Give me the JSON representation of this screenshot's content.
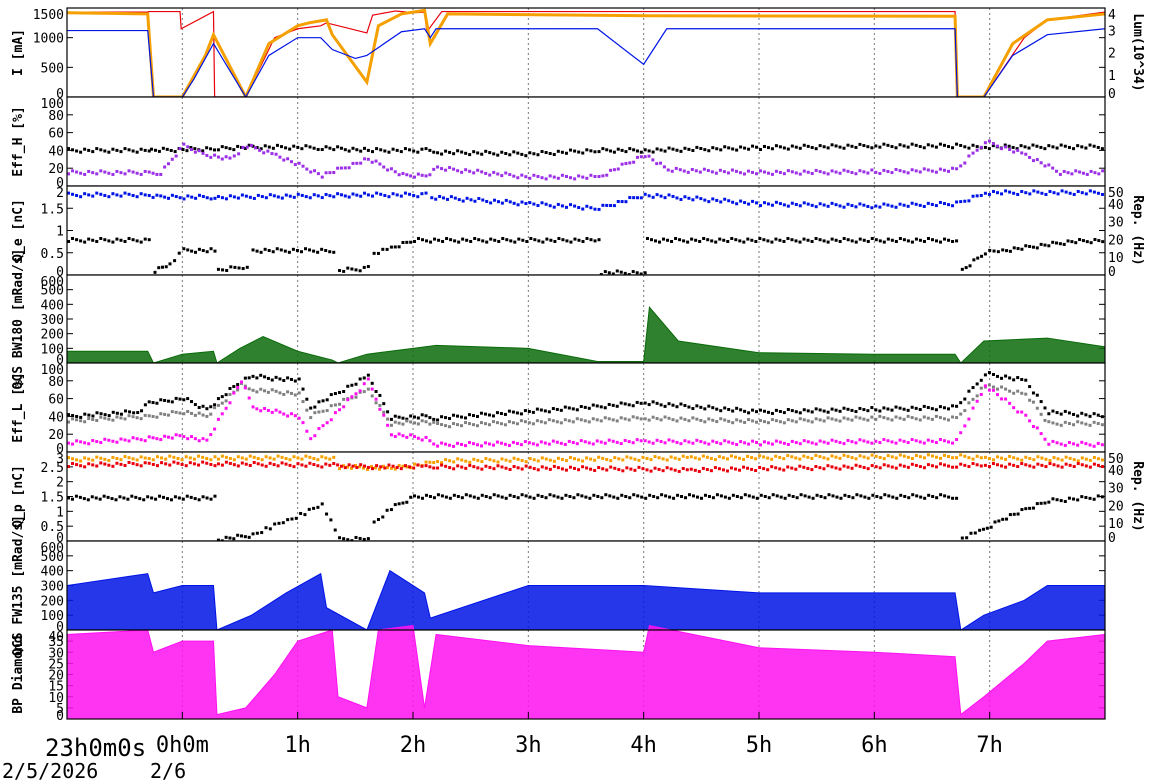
{
  "time_axis": {
    "tick_labels": [
      "0h0m",
      "1h",
      "2h",
      "3h",
      "4h",
      "5h",
      "6h",
      "7h"
    ],
    "start_label": "23h0m0s",
    "date_labels": [
      "2/5/2026",
      "2/6"
    ],
    "range_hours": [
      -1,
      8
    ]
  },
  "colors": {
    "red": "#e8000b",
    "orange": "#f5a000",
    "blue": "#0014e6",
    "black": "#000000",
    "purple": "#9b30e6",
    "green": "#0a6b0a",
    "gray": "#808080",
    "magenta": "#ff10f0"
  },
  "chart_data": [
    {
      "type": "line",
      "ylabel": "I [mA]",
      "ylim": [
        0,
        1500
      ],
      "yticks": [
        "0",
        "500",
        "1000",
        "1500"
      ],
      "right_axis": {
        "label": "Lum(10^34)",
        "ylim": [
          0,
          4
        ],
        "ticks": [
          "0",
          "1",
          "2",
          "3",
          "4"
        ]
      },
      "series": [
        {
          "color": "red",
          "x": [
            -1,
            -0.3,
            -0.29,
            -0.02,
            -0.01,
            0.27,
            0.28,
            0.55,
            0.8,
            1.0,
            1.2,
            1.25,
            1.6,
            1.65,
            1.85,
            2.0,
            2.1,
            2.12,
            2.25,
            6.7,
            6.72,
            6.95,
            7.3,
            7.5,
            8
          ],
          "y": [
            1430,
            1430,
            1440,
            1440,
            1150,
            1440,
            0,
            0,
            1000,
            1150,
            1200,
            1250,
            1080,
            1380,
            1450,
            1420,
            1430,
            1100,
            1440,
            1440,
            0,
            0,
            1000,
            1300,
            1430
          ]
        },
        {
          "color": "orange",
          "x": [
            -1,
            -0.3,
            -0.25,
            0,
            0.2,
            0.27,
            0.55,
            0.75,
            1.0,
            1.1,
            1.25,
            1.3,
            1.6,
            1.7,
            1.9,
            2.1,
            2.15,
            2.3,
            4.0,
            6.7,
            6.72,
            6.95,
            7.2,
            7.5,
            8
          ],
          "y": [
            1420,
            1400,
            0,
            0,
            700,
            1050,
            0,
            900,
            1200,
            1250,
            1300,
            1050,
            250,
            1200,
            1400,
            1460,
            900,
            1400,
            1370,
            1360,
            0,
            0,
            900,
            1300,
            1400
          ]
        },
        {
          "color": "blue",
          "x": [
            -1,
            -0.3,
            -0.25,
            0,
            0.1,
            0.27,
            0.55,
            0.75,
            1.0,
            1.2,
            1.3,
            1.5,
            1.6,
            1.9,
            2.1,
            2.15,
            2.2,
            3.6,
            4.0,
            4.2,
            6.7,
            6.72,
            6.95,
            7.2,
            7.5,
            8
          ],
          "y": [
            1120,
            1120,
            0,
            0,
            300,
            900,
            0,
            700,
            1000,
            1000,
            800,
            650,
            700,
            1100,
            1150,
            1000,
            1150,
            1150,
            550,
            1150,
            1150,
            0,
            0,
            700,
            1050,
            1150
          ]
        }
      ]
    },
    {
      "type": "scatter",
      "ylabel": "Eff_H [%]",
      "ylim": [
        0,
        100
      ],
      "yticks": [
        "0",
        "20",
        "40",
        "60",
        "80",
        "100"
      ],
      "series": [
        {
          "color": "black",
          "x": [
            -1,
            -0.3,
            -0.28,
            0.3,
            0.6,
            1.2,
            1.6,
            2.1,
            2.2,
            3.0,
            3.6,
            4.0,
            5.0,
            6.0,
            6.7,
            6.95,
            7.5,
            8
          ],
          "y": [
            40,
            40,
            40,
            42,
            44,
            43,
            40,
            40,
            38,
            36,
            40,
            40,
            43,
            45,
            45,
            44,
            44,
            44
          ]
        },
        {
          "color": "purple",
          "x": [
            -1,
            -0.3,
            -0.2,
            -0.1,
            0.0,
            0.2,
            0.4,
            0.55,
            0.8,
            1.2,
            1.6,
            1.9,
            2.1,
            2.2,
            3.0,
            3.6,
            4.0,
            4.2,
            5.0,
            6.0,
            6.7,
            6.95,
            7.3,
            7.6,
            8
          ],
          "y": [
            15,
            15,
            15,
            30,
            45,
            35,
            30,
            45,
            35,
            12,
            30,
            12,
            12,
            20,
            10,
            10,
            35,
            18,
            15,
            16,
            18,
            50,
            35,
            15,
            15
          ]
        }
      ]
    },
    {
      "type": "scatter",
      "ylabel": "Q_e [nC]",
      "ylim": [
        0,
        2
      ],
      "yticks": [
        "0",
        "0.5",
        "1",
        "1.5",
        "2"
      ],
      "right_axis": {
        "label": "Rep. (Hz)",
        "ylim": [
          0,
          50
        ],
        "ticks": [
          "0",
          "10",
          "20",
          "30",
          "40",
          "50"
        ]
      },
      "series": [
        {
          "color": "blue",
          "x": [
            -1,
            -0.3,
            -0.2,
            0.27,
            0.3,
            1.2,
            1.6,
            2.1,
            2.15,
            3.0,
            3.6,
            4.0,
            5.0,
            6.0,
            6.7,
            6.95,
            8
          ],
          "y": [
            1.8,
            1.8,
            1.75,
            1.75,
            1.75,
            1.78,
            1.8,
            1.8,
            1.75,
            1.6,
            1.5,
            1.8,
            1.6,
            1.55,
            1.6,
            1.85,
            1.85
          ]
        },
        {
          "color": "black",
          "x": [
            -1,
            -0.3,
            -0.25,
            -0.12,
            0.0,
            0.27,
            0.3,
            0.55,
            0.6,
            1.3,
            1.35,
            1.6,
            1.65,
            1.8,
            2.0,
            3.6,
            3.62,
            4.0,
            4.02,
            6.7,
            6.75,
            6.95,
            7.1,
            7.4,
            7.7,
            8
          ],
          "y": [
            0.78,
            0.78,
            0.1,
            0.25,
            0.55,
            0.55,
            0.1,
            0.2,
            0.55,
            0.55,
            0.1,
            0.15,
            0.5,
            0.6,
            0.78,
            0.78,
            0.05,
            0.05,
            0.78,
            0.78,
            0.1,
            0.5,
            0.55,
            0.65,
            0.75,
            0.78
          ]
        }
      ]
    },
    {
      "type": "area",
      "ylabel": "QCS BW180 [mRad/s]",
      "ylim": [
        0,
        600
      ],
      "yticks": [
        "0",
        "100",
        "200",
        "300",
        "400",
        "500",
        "600"
      ],
      "series": [
        {
          "color": "green",
          "x": [
            -1,
            -0.3,
            -0.25,
            0,
            0.27,
            0.3,
            0.5,
            0.7,
            1.0,
            1.3,
            1.35,
            1.6,
            2.0,
            2.2,
            3.0,
            3.6,
            4.0,
            4.05,
            4.3,
            5.0,
            6.0,
            6.7,
            6.75,
            6.95,
            7.5,
            8
          ],
          "y": [
            80,
            80,
            0,
            60,
            80,
            0,
            100,
            180,
            80,
            20,
            0,
            60,
            100,
            120,
            100,
            10,
            10,
            380,
            150,
            70,
            60,
            60,
            0,
            150,
            170,
            110
          ]
        }
      ]
    },
    {
      "type": "scatter",
      "ylabel": "Eff_L [%]",
      "ylim": [
        0,
        100
      ],
      "yticks": [
        "0",
        "20",
        "40",
        "60",
        "80",
        "100"
      ],
      "series": [
        {
          "color": "black",
          "x": [
            -1,
            -0.4,
            -0.3,
            0.0,
            0.2,
            0.5,
            0.6,
            1.0,
            1.1,
            1.6,
            1.8,
            2.1,
            2.2,
            4.0,
            5.0,
            6.0,
            6.7,
            6.95,
            7.3,
            7.5,
            8
          ],
          "y": [
            40,
            45,
            55,
            60,
            48,
            80,
            85,
            80,
            50,
            85,
            38,
            40,
            38,
            55,
            45,
            48,
            50,
            88,
            80,
            45,
            40
          ]
        },
        {
          "color": "gray",
          "x": [
            -1,
            -0.3,
            0.0,
            0.2,
            0.5,
            0.6,
            1.0,
            1.1,
            1.6,
            1.8,
            2.1,
            2.2,
            4.0,
            5.0,
            6.0,
            6.7,
            6.95,
            7.3,
            7.5,
            8
          ],
          "y": [
            35,
            40,
            45,
            40,
            75,
            70,
            65,
            40,
            70,
            32,
            34,
            30,
            38,
            34,
            38,
            38,
            75,
            65,
            32,
            32
          ]
        },
        {
          "color": "magenta",
          "x": [
            -1,
            -0.3,
            0.0,
            0.2,
            0.5,
            0.6,
            1.0,
            1.1,
            1.6,
            1.8,
            2.1,
            2.2,
            4.0,
            5.0,
            6.0,
            6.7,
            6.95,
            7.3,
            7.5,
            8
          ],
          "y": [
            10,
            15,
            18,
            12,
            80,
            50,
            40,
            15,
            80,
            20,
            15,
            8,
            12,
            10,
            12,
            12,
            75,
            40,
            10,
            8
          ]
        }
      ]
    },
    {
      "type": "scatter",
      "ylabel": "Q_p [nC]",
      "ylim": [
        0,
        3
      ],
      "yticks": [
        "0",
        "0.5",
        "1",
        "1.5",
        "2",
        "2.5",
        "3"
      ],
      "right_axis": {
        "label": "Rep. (Hz)",
        "ylim": [
          0,
          50
        ],
        "ticks": [
          "0",
          "10",
          "20",
          "30",
          "40",
          "50"
        ]
      },
      "series": [
        {
          "color": "orange",
          "x": [
            -1,
            -0.3,
            0.27,
            0.3,
            1.3,
            1.35,
            1.8,
            2.1,
            2.2,
            4.4,
            6.7,
            6.95,
            8
          ],
          "y": [
            2.75,
            2.8,
            2.8,
            2.8,
            2.8,
            2.5,
            2.45,
            2.6,
            2.7,
            2.8,
            2.85,
            2.8,
            2.75
          ]
        },
        {
          "color": "red",
          "x": [
            -1,
            -0.3,
            0.27,
            0.3,
            1.3,
            1.6,
            2.1,
            2.2,
            4.4,
            6.7,
            6.95,
            8
          ],
          "y": [
            2.55,
            2.6,
            2.6,
            2.6,
            2.55,
            2.5,
            2.5,
            2.5,
            2.4,
            2.55,
            2.55,
            2.55
          ]
        },
        {
          "color": "black",
          "x": [
            -1,
            0.27,
            0.3,
            0.6,
            0.75,
            0.9,
            1.05,
            1.2,
            1.35,
            1.6,
            1.65,
            1.8,
            2.0,
            6.7,
            6.75,
            6.9,
            7.1,
            7.3,
            7.5,
            8
          ],
          "y": [
            1.45,
            1.45,
            0.05,
            0.2,
            0.45,
            0.7,
            0.95,
            1.25,
            0.05,
            0.1,
            0.6,
            1.1,
            1.5,
            1.5,
            0.1,
            0.3,
            0.75,
            1.05,
            1.35,
            1.5
          ]
        }
      ]
    },
    {
      "type": "area",
      "ylabel": "QCS FW135 [mRad/s]",
      "ylim": [
        0,
        600
      ],
      "yticks": [
        "0",
        "100",
        "200",
        "300",
        "400",
        "500",
        "600"
      ],
      "series": [
        {
          "color": "blue",
          "x": [
            -1,
            -0.3,
            -0.25,
            0,
            0.27,
            0.3,
            0.6,
            0.9,
            1.2,
            1.25,
            1.6,
            1.8,
            2.1,
            2.15,
            3.0,
            4.0,
            5.0,
            6.0,
            6.7,
            6.75,
            6.95,
            7.3,
            7.5,
            8
          ],
          "y": [
            300,
            380,
            250,
            300,
            300,
            0,
            100,
            250,
            380,
            150,
            0,
            400,
            250,
            80,
            300,
            300,
            250,
            250,
            250,
            0,
            100,
            200,
            300,
            300
          ]
        }
      ]
    },
    {
      "type": "area",
      "ylabel": "BP Diamond",
      "ylim": [
        0,
        40
      ],
      "yticks": [
        "0",
        "5",
        "10",
        "15",
        "20",
        "25",
        "30",
        "35",
        "40"
      ],
      "series": [
        {
          "color": "magenta",
          "x": [
            -1,
            -0.3,
            -0.25,
            0,
            0.27,
            0.3,
            0.55,
            0.8,
            1.0,
            1.3,
            1.35,
            1.6,
            1.7,
            2.0,
            2.1,
            2.2,
            3.0,
            4.0,
            4.05,
            5.0,
            6.0,
            6.7,
            6.75,
            6.95,
            7.3,
            7.5,
            8
          ],
          "y": [
            38,
            40,
            30,
            35,
            35,
            2,
            5,
            20,
            35,
            40,
            10,
            5,
            40,
            42,
            5,
            38,
            33,
            30,
            42,
            32,
            30,
            28,
            2,
            10,
            25,
            35,
            38
          ]
        }
      ]
    }
  ]
}
